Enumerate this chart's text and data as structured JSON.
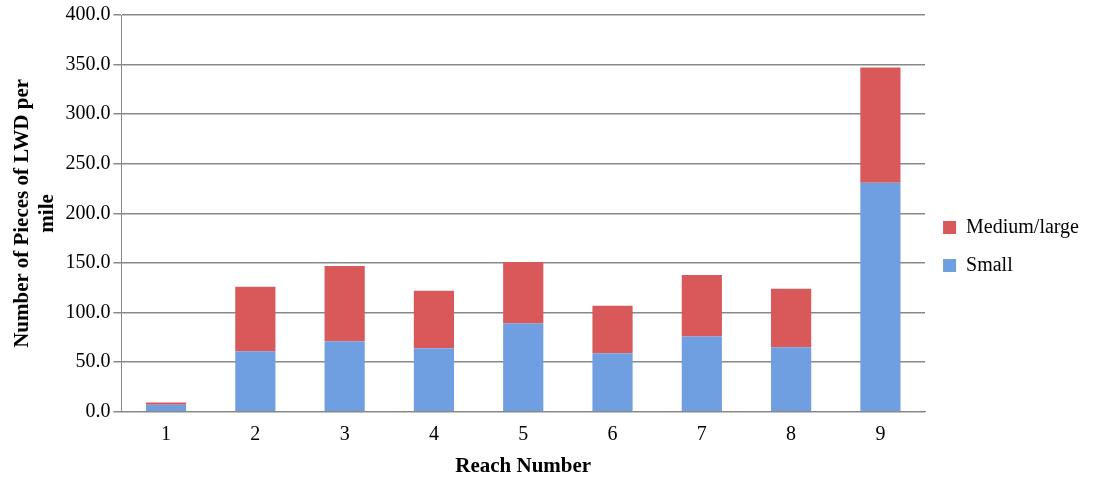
{
  "chart_data": {
    "type": "bar",
    "stacked": true,
    "xlabel": "Reach Number",
    "ylabel": "Number of Pieces of LWD per mile",
    "categories": [
      "1",
      "2",
      "3",
      "4",
      "5",
      "6",
      "7",
      "8",
      "9"
    ],
    "series": [
      {
        "name": "Small",
        "color": "#6f9fe0",
        "values": [
          7,
          61,
          71,
          64,
          89,
          59,
          76,
          65,
          231
        ]
      },
      {
        "name": "Medium/large",
        "color": "#d9585a",
        "values": [
          2.5,
          65,
          76,
          58,
          62,
          48,
          62,
          59,
          116
        ]
      }
    ],
    "ylim": [
      0,
      400
    ],
    "yticks": [
      {
        "value": 0,
        "label": "0.0"
      },
      {
        "value": 50,
        "label": "50.0"
      },
      {
        "value": 100,
        "label": "100.0"
      },
      {
        "value": 150,
        "label": "150.0"
      },
      {
        "value": 200,
        "label": "200.0"
      },
      {
        "value": 250,
        "label": "250.0"
      },
      {
        "value": 300,
        "label": "300.0"
      },
      {
        "value": 350,
        "label": "350.0"
      },
      {
        "value": 400,
        "label": "400.0"
      }
    ],
    "grid": "y",
    "legend": "right"
  }
}
